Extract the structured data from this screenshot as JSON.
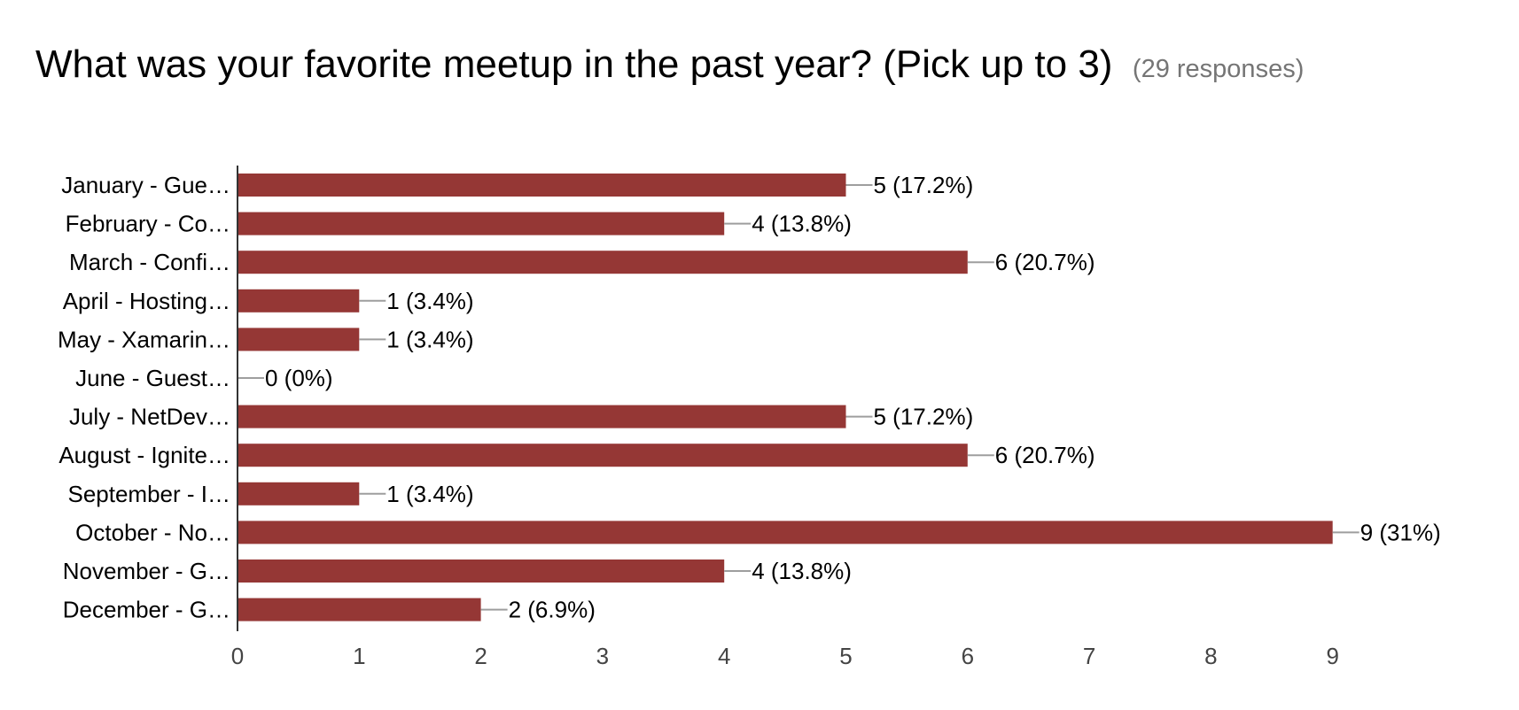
{
  "question": {
    "title": "What was your favorite meetup in the past year? (Pick up to 3)",
    "responses": "(29 responses)"
  },
  "colors": {
    "bar": "#953735",
    "axis": "#333333",
    "leader": "#9e9e9e"
  },
  "chart_data": {
    "type": "bar",
    "orientation": "horizontal",
    "title": "What was your favorite meetup in the past year? (Pick up to 3)",
    "categories": [
      "January - Gue…",
      "February - Co…",
      "March - Confi…",
      "April - Hosting…",
      "May - Xamarin…",
      "June - Guest…",
      "July - NetDev…",
      "August - Ignite…",
      "September - I…",
      "October - No…",
      "November - G…",
      "December - G…"
    ],
    "values": [
      5,
      4,
      6,
      1,
      1,
      0,
      5,
      6,
      1,
      9,
      4,
      2
    ],
    "value_labels": [
      "5 (17.2%)",
      "4 (13.8%)",
      "6 (20.7%)",
      "1 (3.4%)",
      "1 (3.4%)",
      "0 (0%)",
      "5 (17.2%)",
      "6 (20.7%)",
      "1 (3.4%)",
      "9 (31%)",
      "4 (13.8%)",
      "2 (6.9%)"
    ],
    "xlim": [
      0,
      9
    ],
    "xticks": [
      "0",
      "1",
      "2",
      "3",
      "4",
      "5",
      "6",
      "7",
      "8",
      "9"
    ],
    "xlabel": "",
    "ylabel": "",
    "grid": false,
    "legend": "none"
  }
}
